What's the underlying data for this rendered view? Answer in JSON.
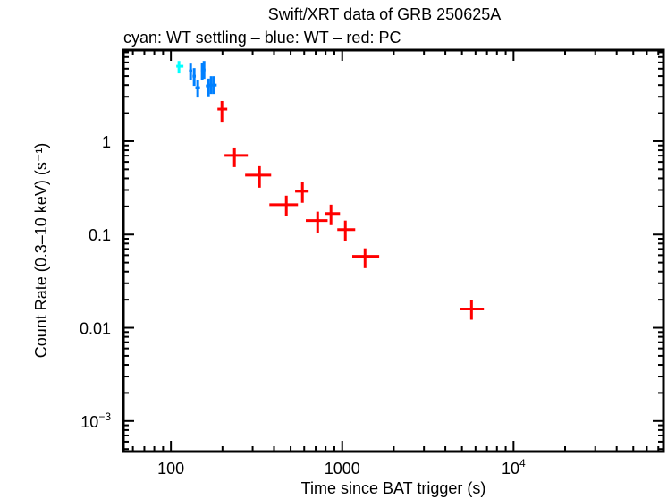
{
  "chart_data": {
    "type": "scatter",
    "title": "Swift/XRT data of GRB 250625A",
    "subtitle": "cyan: WT settling – blue: WT – red: PC",
    "xlabel": "Time since BAT trigger (s)",
    "ylabel": "Count Rate (0.3–10 keV) (s⁻¹)",
    "xscale": "log",
    "yscale": "log",
    "xlim": [
      52.8,
      75000
    ],
    "ylim": [
      0.00047,
      9.5
    ],
    "grid": false,
    "x_ticks": [
      {
        "value": 100,
        "label": "100"
      },
      {
        "value": 1000,
        "label": "1000"
      },
      {
        "value": 10000,
        "label": "10",
        "exp": "4"
      }
    ],
    "y_ticks": [
      {
        "value": 1,
        "label": "1"
      },
      {
        "value": 0.1,
        "label": "0.1"
      },
      {
        "value": 0.01,
        "label": "0.01"
      },
      {
        "value": 0.001,
        "label": "10",
        "exp": "−3"
      }
    ],
    "series": [
      {
        "name": "WT settling",
        "color": "#00ffff",
        "points": [
          {
            "t": 111.4,
            "t_lo": 107.5,
            "t_hi": 118.3,
            "rate": 6.37,
            "rate_lo": 5.34,
            "rate_hi": 7.26
          }
        ]
      },
      {
        "name": "WT",
        "color": "#0080ff",
        "points": [
          {
            "t": 130.3,
            "t_lo": 127.5,
            "t_hi": 133.2,
            "rate": 5.7,
            "rate_lo": 4.57,
            "rate_hi": 6.8
          },
          {
            "t": 136.7,
            "t_lo": 133.7,
            "t_hi": 139.8,
            "rate": 4.99,
            "rate_lo": 3.92,
            "rate_hi": 6.09
          },
          {
            "t": 143.4,
            "t_lo": 139.0,
            "t_hi": 147.8,
            "rate": 3.75,
            "rate_lo": 2.94,
            "rate_hi": 4.57
          },
          {
            "t": 152.3,
            "t_lo": 149.9,
            "t_hi": 154.7,
            "rate": 5.7,
            "rate_lo": 4.57,
            "rate_hi": 6.9
          },
          {
            "t": 156.1,
            "t_lo": 153.0,
            "t_hi": 159.2,
            "rate": 5.83,
            "rate_lo": 4.67,
            "rate_hi": 7.26
          },
          {
            "t": 165.7,
            "t_lo": 160.0,
            "t_hi": 169.0,
            "rate": 3.92,
            "rate_lo": 3.03,
            "rate_hi": 4.7
          },
          {
            "t": 171.8,
            "t_lo": 168.5,
            "t_hi": 175.1,
            "rate": 4.0,
            "rate_lo": 3.21,
            "rate_hi": 4.99
          },
          {
            "t": 178.1,
            "t_lo": 174.6,
            "t_hi": 185.0,
            "rate": 4.0,
            "rate_lo": 3.21,
            "rate_hi": 4.99
          }
        ]
      },
      {
        "name": "PC",
        "color": "#ff0000",
        "points": [
          {
            "t": 198.5,
            "t_lo": 187.0,
            "t_hi": 213.3,
            "rate": 2.21,
            "rate_lo": 1.62,
            "rate_hi": 2.7
          },
          {
            "t": 234.9,
            "t_lo": 205.6,
            "t_hi": 281.2,
            "rate": 0.703,
            "rate_lo": 0.528,
            "rate_hi": 0.857
          },
          {
            "t": 328.9,
            "t_lo": 271.2,
            "t_hi": 384.8,
            "rate": 0.433,
            "rate_lo": 0.318,
            "rate_hi": 0.54
          },
          {
            "t": 471.7,
            "t_lo": 375.7,
            "t_hi": 551.5,
            "rate": 0.209,
            "rate_lo": 0.157,
            "rate_hi": 0.261
          },
          {
            "t": 585.7,
            "t_lo": 531.1,
            "t_hi": 636.5,
            "rate": 0.291,
            "rate_lo": 0.219,
            "rate_hi": 0.363
          },
          {
            "t": 718.8,
            "t_lo": 613.0,
            "t_hi": 822.0,
            "rate": 0.141,
            "rate_lo": 0.1035,
            "rate_hi": 0.176
          },
          {
            "t": 860,
            "t_lo": 790,
            "t_hi": 971,
            "rate": 0.168,
            "rate_lo": 0.126,
            "rate_hi": 0.209
          },
          {
            "t": 1043,
            "t_lo": 936,
            "t_hi": 1191,
            "rate": 0.113,
            "rate_lo": 0.0851,
            "rate_hi": 0.141
          },
          {
            "t": 1359,
            "t_lo": 1145,
            "t_hi": 1644,
            "rate": 0.0583,
            "rate_lo": 0.0436,
            "rate_hi": 0.0711
          },
          {
            "t": 5684,
            "t_lo": 4865,
            "t_hi": 6714,
            "rate": 0.0159,
            "rate_lo": 0.0122,
            "rate_hi": 0.0198
          }
        ]
      }
    ]
  }
}
